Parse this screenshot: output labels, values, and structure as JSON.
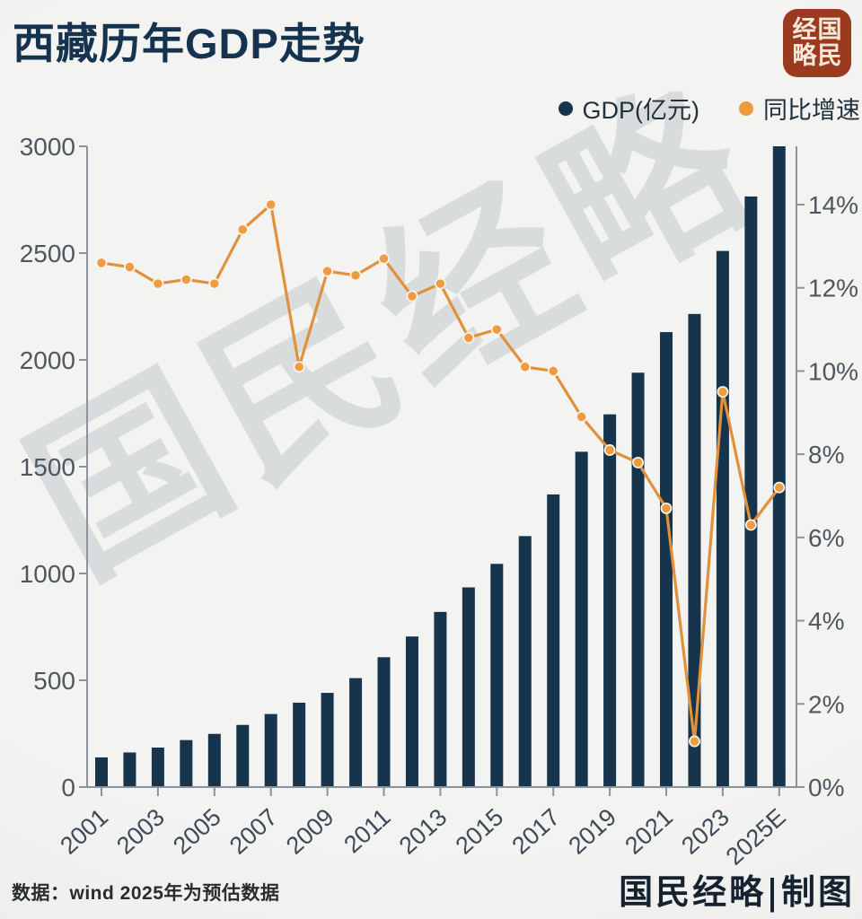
{
  "header": {
    "title": "西藏历年GDP走势"
  },
  "logo": {
    "full_name": "国民经略",
    "chars": [
      "经",
      "国",
      "略",
      "民"
    ],
    "bg_color": "#9c3a20",
    "text_color": "#f4e8d7"
  },
  "legend": {
    "items": [
      {
        "label": "GDP(亿元)",
        "color": "#16344c"
      },
      {
        "label": "同比增速",
        "color": "#ec9c3e"
      }
    ]
  },
  "watermark": {
    "text": "国民经略"
  },
  "footer": {
    "source": "数据：wind  2025年为预估数据",
    "credit": "国民经略|制图"
  },
  "chart_data": {
    "type": "combo-bar-line",
    "title": "西藏历年GDP走势",
    "categories": [
      "2001",
      "2002",
      "2003",
      "2004",
      "2005",
      "2006",
      "2007",
      "2008",
      "2009",
      "2010",
      "2011",
      "2012",
      "2013",
      "2014",
      "2015",
      "2016",
      "2017",
      "2018",
      "2019",
      "2020",
      "2021",
      "2022",
      "2023",
      "2024",
      "2025E"
    ],
    "series": [
      {
        "name": "GDP(亿元)",
        "type": "bar",
        "axis": "left",
        "color": "#16344c",
        "values": [
          139,
          162,
          185,
          220,
          249,
          291,
          342,
          395,
          441,
          510,
          608,
          705,
          820,
          935,
          1045,
          1175,
          1370,
          1570,
          1745,
          1940,
          2130,
          2215,
          2510,
          2765,
          3000
        ]
      },
      {
        "name": "同比增速",
        "type": "line",
        "axis": "right",
        "color": "#e0913c",
        "marker_fill": "#ee9c3f",
        "marker_stroke": "#f7f4ef",
        "values_pct": [
          12.6,
          12.5,
          12.1,
          12.2,
          12.1,
          13.4,
          14.0,
          10.1,
          12.4,
          12.3,
          12.7,
          11.8,
          12.1,
          10.8,
          11.0,
          10.1,
          10.0,
          8.9,
          8.1,
          7.8,
          6.7,
          1.1,
          9.5,
          6.3,
          7.2
        ]
      }
    ],
    "left_axis": {
      "min": 0,
      "max": 3000,
      "tick_step": 500,
      "ticks": [
        0,
        500,
        1000,
        1500,
        2000,
        2500,
        3000
      ]
    },
    "right_axis": {
      "min": 0,
      "tick_step": 2,
      "unit": "%",
      "ticks": [
        0,
        2,
        4,
        6,
        8,
        10,
        12,
        14
      ]
    },
    "x_tick_labels": [
      "2001",
      "2003",
      "2005",
      "2007",
      "2009",
      "2011",
      "2013",
      "2015",
      "2017",
      "2019",
      "2021",
      "2023",
      "2025E"
    ],
    "grid": false,
    "legend_position": "top-right",
    "axis_color": "#8d939b",
    "tick_label_color": "#4e5660",
    "x_label_color": "#3e4a57"
  }
}
